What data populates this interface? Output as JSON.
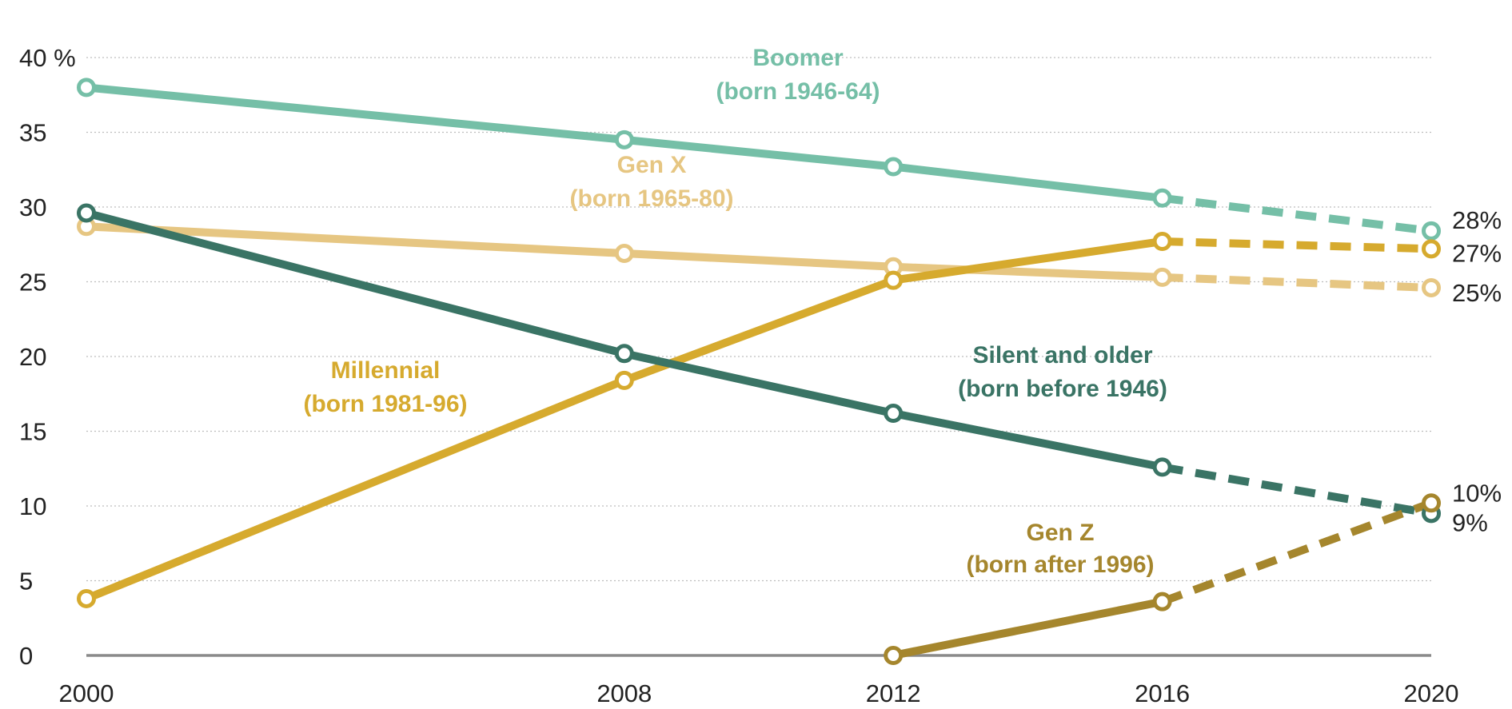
{
  "chart_data": {
    "type": "line",
    "title": "",
    "xlabel": "",
    "ylabel": "",
    "x": [
      2000,
      2008,
      2012,
      2016,
      2020
    ],
    "xlim": [
      2000,
      2020
    ],
    "ylim": [
      0,
      40
    ],
    "yticks": [
      0,
      5,
      10,
      15,
      20,
      25,
      30,
      35,
      40
    ],
    "ytick_labels": [
      "0",
      "5",
      "10",
      "15",
      "20",
      "25",
      "30",
      "35",
      "40 %"
    ],
    "xtick_labels": [
      "2000",
      "2008",
      "2012",
      "2016",
      "2020"
    ],
    "grid": "horizontal dotted",
    "legend": "none (direct labels)",
    "projected_from": 2016,
    "series": [
      {
        "name_line1": "Boomer",
        "name_line2": "(born 1946-64)",
        "color": "#75bfa7",
        "x": [
          2000,
          2008,
          2012,
          2016,
          2020
        ],
        "values": [
          38,
          34.5,
          32.7,
          30.6,
          28.4
        ],
        "end_label": "28%"
      },
      {
        "name_line1": "Gen X",
        "name_line2": "(born 1965-80)",
        "color": "#e6c682",
        "x": [
          2000,
          2008,
          2012,
          2016,
          2020
        ],
        "values": [
          28.7,
          26.9,
          26.0,
          25.3,
          24.6
        ],
        "end_label": "25%"
      },
      {
        "name_line1": "Millennial",
        "name_line2": "(born 1981-96)",
        "color": "#d6aa2e",
        "x": [
          2000,
          2008,
          2012,
          2016,
          2020
        ],
        "values": [
          3.8,
          18.4,
          25.1,
          27.7,
          27.2
        ],
        "end_label": "27%"
      },
      {
        "name_line1": "Silent and older",
        "name_line2": "(born before 1946)",
        "color": "#3a7465",
        "x": [
          2000,
          2008,
          2012,
          2016,
          2020
        ],
        "values": [
          29.6,
          20.2,
          16.2,
          12.6,
          9.5
        ],
        "end_label": "9%"
      },
      {
        "name_line1": "Gen Z",
        "name_line2": "(born after 1996)",
        "color": "#a5862d",
        "x": [
          2012,
          2016,
          2020
        ],
        "values": [
          0,
          3.6,
          10.2
        ],
        "end_label": "10%"
      }
    ]
  }
}
